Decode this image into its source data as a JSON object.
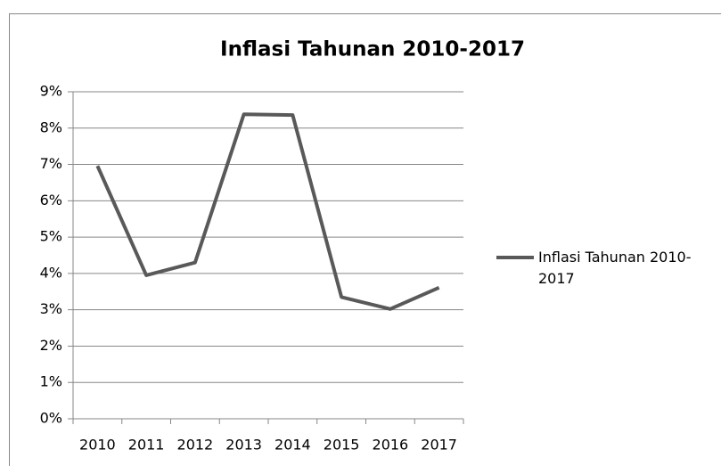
{
  "chart_data": {
    "type": "line",
    "title": "Inflasi Tahunan 2010-2017",
    "categories": [
      "2010",
      "2011",
      "2012",
      "2013",
      "2014",
      "2015",
      "2016",
      "2017"
    ],
    "series": [
      {
        "name": "Inflasi Tahunan 2010-2017",
        "color": "#595959",
        "values": [
          6.96,
          3.95,
          4.3,
          8.38,
          8.36,
          3.35,
          3.02,
          3.61
        ]
      }
    ],
    "ylim": [
      0,
      9
    ],
    "yticks": [
      {
        "value": 0,
        "label": "0%"
      },
      {
        "value": 1,
        "label": "1%"
      },
      {
        "value": 2,
        "label": "2%"
      },
      {
        "value": 3,
        "label": "3%"
      },
      {
        "value": 4,
        "label": "4%"
      },
      {
        "value": 5,
        "label": "5%"
      },
      {
        "value": 6,
        "label": "6%"
      },
      {
        "value": 7,
        "label": "7%"
      },
      {
        "value": 8,
        "label": "8%"
      },
      {
        "value": 9,
        "label": "9%"
      }
    ],
    "grid": true,
    "legend": "right"
  }
}
